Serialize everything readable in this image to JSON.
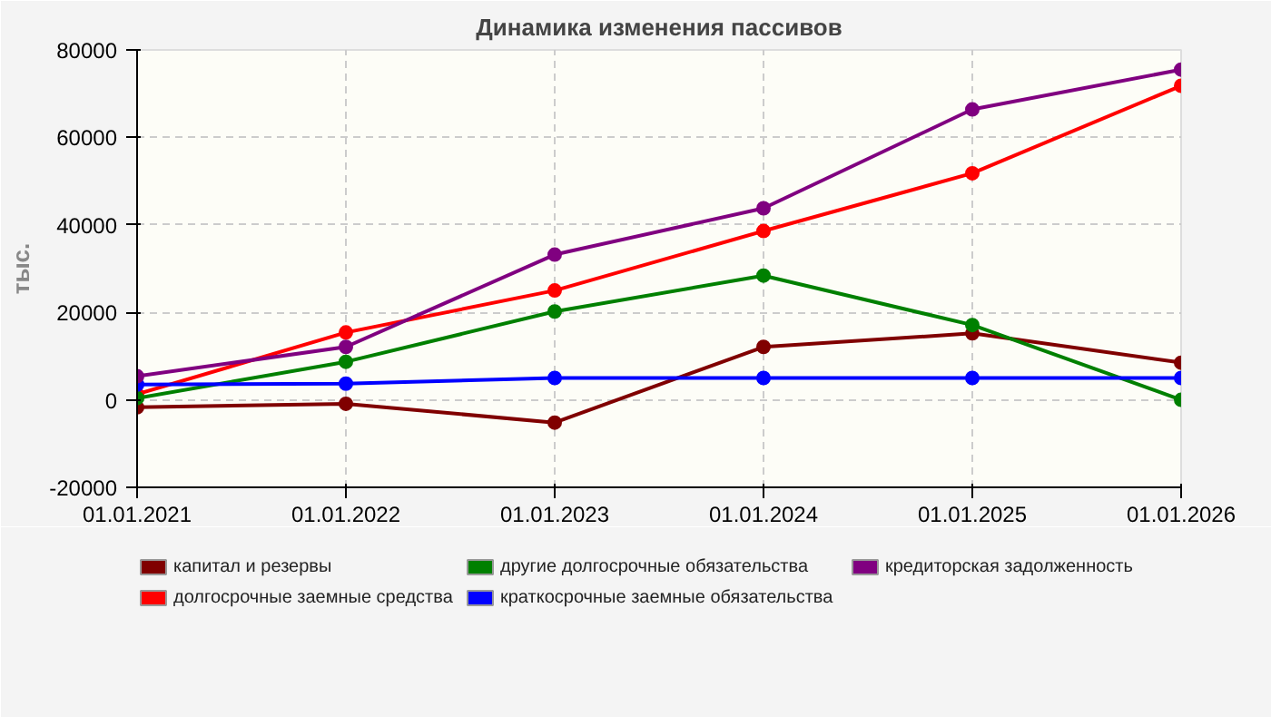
{
  "chart_data": {
    "type": "line",
    "title": "Динамика изменения пассивов",
    "ylabel": "тыс.",
    "categories": [
      "01.01.2021",
      "01.01.2022",
      "01.01.2023",
      "01.01.2024",
      "01.01.2025",
      "01.01.2026"
    ],
    "series": [
      {
        "name": "капитал и резервы",
        "color": "#800000",
        "values": [
          -1700,
          -900,
          -5200,
          12100,
          15200,
          8500
        ]
      },
      {
        "name": "долгосрочные заемные средства",
        "color": "#ff0000",
        "values": [
          1300,
          15400,
          25000,
          38600,
          51800,
          71800
        ]
      },
      {
        "name": "другие долгосрочные обязательства",
        "color": "#008000",
        "values": [
          400,
          8700,
          20200,
          28400,
          17100,
          0
        ]
      },
      {
        "name": "краткосрочные заемные обязательства",
        "color": "#0000ff",
        "values": [
          3500,
          3700,
          5000,
          5000,
          5000,
          5000
        ]
      },
      {
        "name": "кредиторская задолженность",
        "color": "#800080",
        "values": [
          5400,
          12100,
          33200,
          43800,
          66400,
          75500
        ]
      }
    ],
    "ylim": [
      -20000,
      80000
    ],
    "yticks": [
      -20000,
      0,
      20000,
      40000,
      60000,
      80000
    ],
    "grid": true,
    "legend": "bottom",
    "marker": "circle",
    "line_style": "solid"
  }
}
